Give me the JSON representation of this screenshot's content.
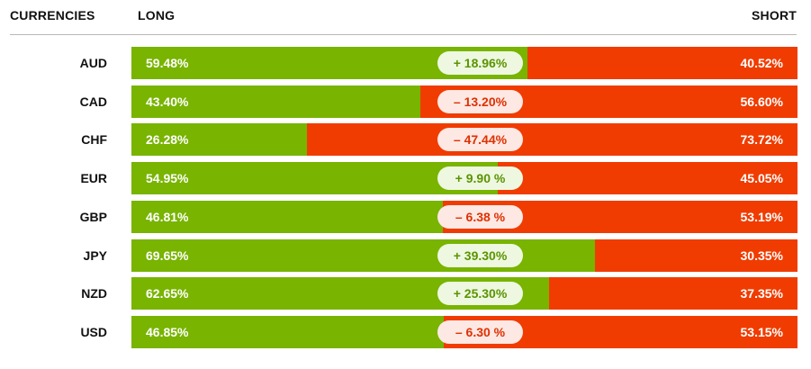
{
  "header": {
    "currencies_label": "CURRENCIES",
    "long_label": "LONG",
    "short_label": "SHORT"
  },
  "colors": {
    "long": "#78b400",
    "short": "#f03c00",
    "net_positive_text": "#5a9400",
    "net_negative_text": "#e03000"
  },
  "rows": [
    {
      "currency": "AUD",
      "long": "59.48%",
      "short": "40.52%",
      "net": "+ 18.96%"
    },
    {
      "currency": "CAD",
      "long": "43.40%",
      "short": "56.60%",
      "net": "– 13.20%"
    },
    {
      "currency": "CHF",
      "long": "26.28%",
      "short": "73.72%",
      "net": "– 47.44%"
    },
    {
      "currency": "EUR",
      "long": "54.95%",
      "short": "45.05%",
      "net": "+ 9.90 %"
    },
    {
      "currency": "GBP",
      "long": "46.81%",
      "short": "53.19%",
      "net": "– 6.38 %"
    },
    {
      "currency": "JPY",
      "long": "69.65%",
      "short": "30.35%",
      "net": "+ 39.30%"
    },
    {
      "currency": "NZD",
      "long": "62.65%",
      "short": "37.35%",
      "net": "+ 25.30%"
    },
    {
      "currency": "USD",
      "long": "46.85%",
      "short": "53.15%",
      "net": "– 6.30 %"
    }
  ],
  "chart_data": {
    "type": "bar",
    "stacked": true,
    "orientation": "horizontal",
    "categories": [
      "AUD",
      "CAD",
      "CHF",
      "EUR",
      "GBP",
      "JPY",
      "NZD",
      "USD"
    ],
    "series": [
      {
        "name": "LONG",
        "values": [
          59.48,
          43.4,
          26.28,
          54.95,
          46.81,
          69.65,
          62.65,
          46.85
        ]
      },
      {
        "name": "SHORT",
        "values": [
          40.52,
          56.6,
          73.72,
          45.05,
          53.19,
          30.35,
          37.35,
          53.15
        ]
      }
    ],
    "net_values": [
      18.96,
      -13.2,
      -47.44,
      9.9,
      -6.38,
      39.3,
      25.3,
      -6.3
    ],
    "xlim": [
      0,
      100
    ],
    "grid": false,
    "legend": "top"
  }
}
